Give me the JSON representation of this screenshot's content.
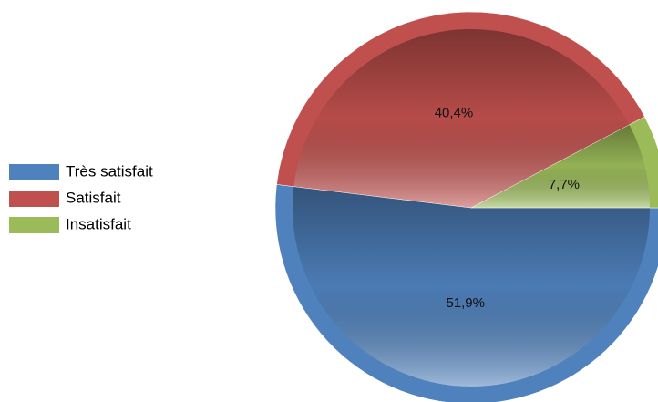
{
  "chart_data": {
    "type": "pie",
    "categories": [
      "Très satisfait",
      "Satisfait",
      "Insatisfait"
    ],
    "values": [
      51.9,
      40.4,
      7.7
    ],
    "value_labels": [
      "51,9%",
      "40,4%",
      "7,7%"
    ],
    "colors": [
      "#4f81bd",
      "#c0504d",
      "#9bbb59"
    ],
    "legend": "left"
  }
}
